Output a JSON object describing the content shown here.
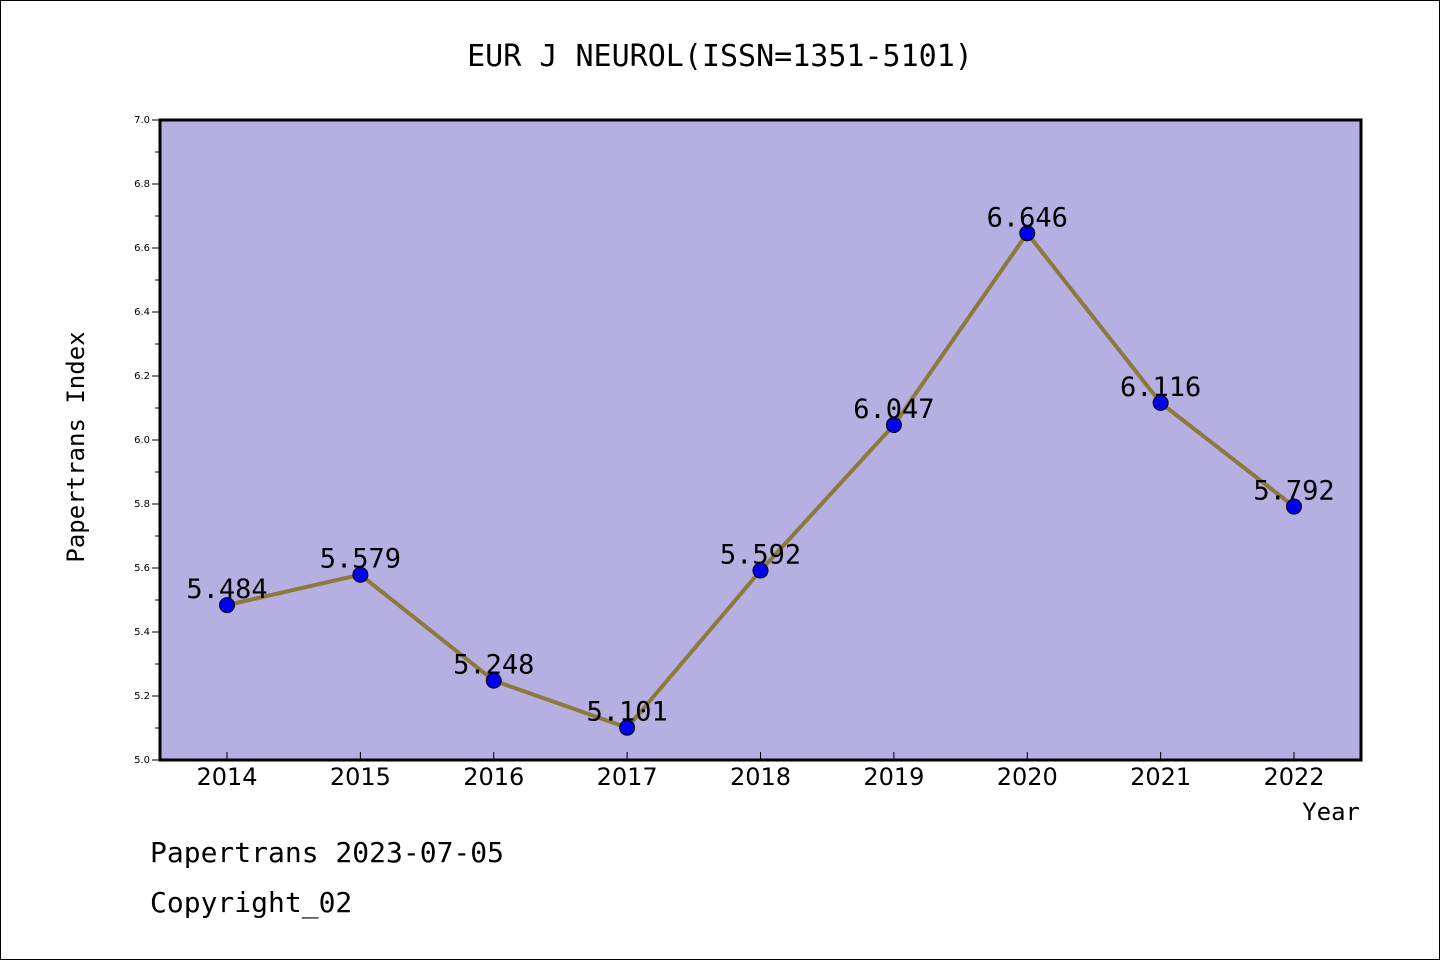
{
  "chart_data": {
    "type": "line",
    "title": "EUR J NEUROL(ISSN=1351-5101)",
    "xlabel": "Year",
    "ylabel": "Papertrans Index",
    "categories": [
      "2014",
      "2015",
      "2016",
      "2017",
      "2018",
      "2019",
      "2020",
      "2021",
      "2022"
    ],
    "series": [
      {
        "values": [
          5.484,
          5.579,
          5.248,
          5.101,
          5.592,
          6.047,
          6.646,
          6.116,
          5.792
        ],
        "labels": [
          "5.484",
          "5.579",
          "5.248",
          "5.101",
          "5.592",
          "6.047",
          "6.646",
          "6.116",
          "5.792"
        ]
      }
    ],
    "ylim": [
      5.0,
      7.0
    ],
    "yticks": [
      "5.0",
      "5.2",
      "5.4",
      "5.6",
      "5.8",
      "6.0",
      "6.2",
      "6.4",
      "6.6",
      "6.8",
      "7.0"
    ],
    "grid": false,
    "colors": {
      "plot_background": "#b5afe2",
      "line": "#8c7a3a",
      "marker": "#0000ee"
    }
  },
  "footer": {
    "date_line": "Papertrans 2023-07-05",
    "copyright": "Copyright_02"
  }
}
